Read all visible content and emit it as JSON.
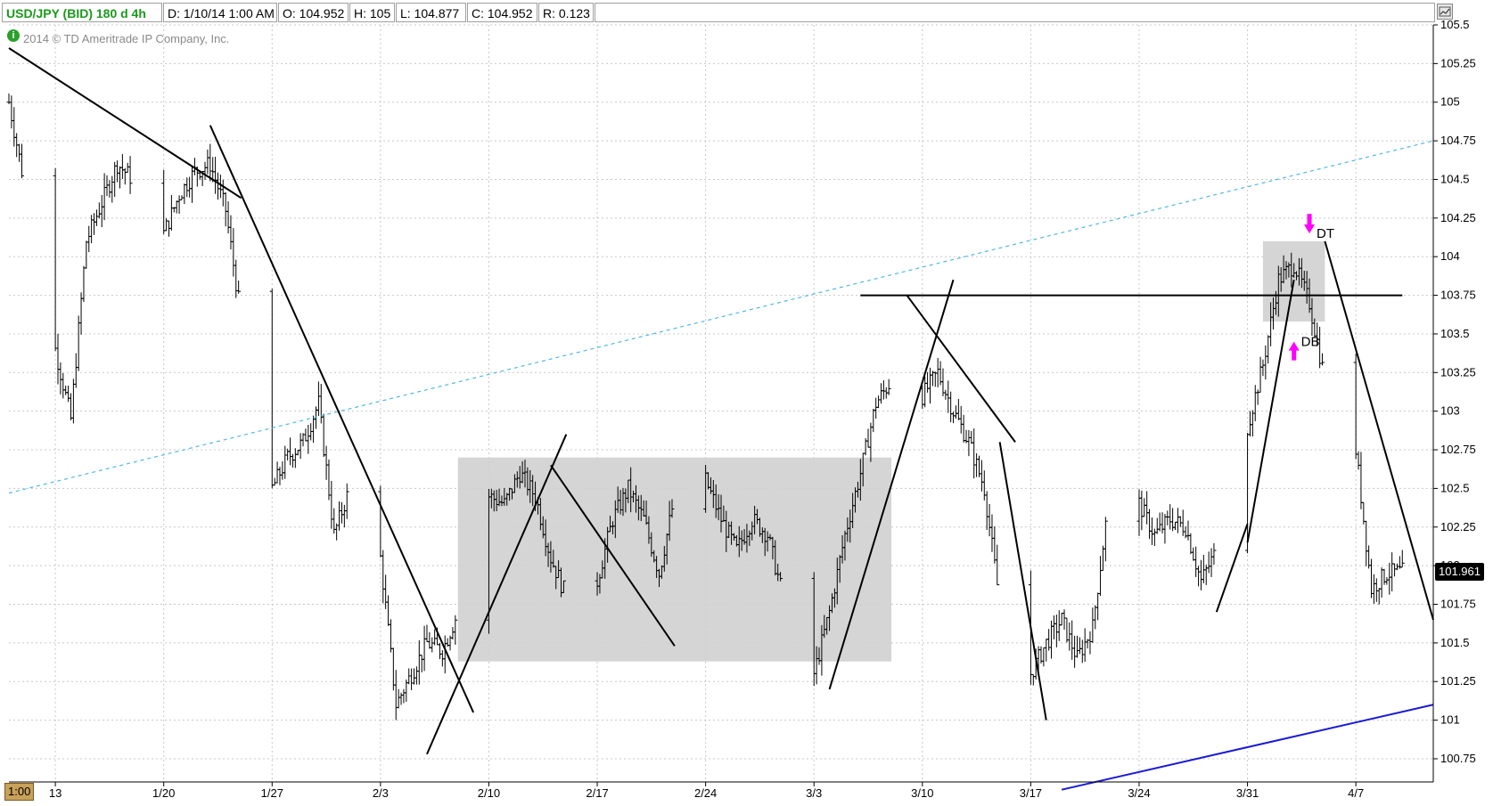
{
  "header": {
    "symbol": "USD/JPY (BID) 180 d 4h",
    "date": "D: 1/10/14 1:00 AM",
    "open": "O: 104.952",
    "high": "H: 105",
    "low": "L: 104.877",
    "close": "C: 104.952",
    "range": "R: 0.123"
  },
  "copyright": "2014 © TD Ameritrade IP Company, Inc.",
  "time_badge": "1:00",
  "last_price": "101.961",
  "colors": {
    "bars": "#000000",
    "zone": "#d0d0d0",
    "dotted_trend": "#4fb8e6",
    "support_trend": "#1a1ad6",
    "marker": "#ff00ff",
    "grid": "#c8c8c8",
    "header_symbol": "#1a9a1a"
  },
  "icons": [
    "info-icon",
    "settings-icon"
  ],
  "chart_data": {
    "type": "ohlc",
    "title": "USD/JPY (BID) 180 d 4h",
    "xlabel": "",
    "ylabel": "",
    "ylim": [
      100.6,
      105.5
    ],
    "xlim": [
      "2014-01-10",
      "2014-04-12"
    ],
    "grid": true,
    "yticks": [
      100.75,
      101,
      101.25,
      101.5,
      101.75,
      102,
      102.25,
      102.5,
      102.75,
      103,
      103.25,
      103.5,
      103.75,
      104,
      104.25,
      104.5,
      104.75,
      105,
      105.25,
      105.5
    ],
    "xticks": [
      {
        "date": "2014-01-13",
        "label": "13"
      },
      {
        "date": "2014-01-20",
        "label": "1/20"
      },
      {
        "date": "2014-01-27",
        "label": "1/27"
      },
      {
        "date": "2014-02-03",
        "label": "2/3"
      },
      {
        "date": "2014-02-10",
        "label": "2/10"
      },
      {
        "date": "2014-02-17",
        "label": "2/17"
      },
      {
        "date": "2014-02-24",
        "label": "2/24"
      },
      {
        "date": "2014-03-03",
        "label": "3/3"
      },
      {
        "date": "2014-03-10",
        "label": "3/10"
      },
      {
        "date": "2014-03-17",
        "label": "3/17"
      },
      {
        "date": "2014-03-24",
        "label": "3/24"
      },
      {
        "date": "2014-03-31",
        "label": "3/31"
      },
      {
        "date": "2014-04-07",
        "label": "4/7"
      }
    ],
    "price_path": [
      [
        "2014-01-10",
        105.0
      ],
      [
        "2014-01-13",
        103.4
      ],
      [
        "2014-01-14",
        102.95
      ],
      [
        "2014-01-15",
        104.1
      ],
      [
        "2014-01-16",
        104.35
      ],
      [
        "2014-01-17",
        104.6
      ],
      [
        "2014-01-18",
        104.5
      ],
      [
        "2014-01-19",
        104.2
      ],
      [
        "2014-01-20",
        104.15
      ],
      [
        "2014-01-21",
        104.4
      ],
      [
        "2014-01-22",
        104.55
      ],
      [
        "2014-01-23",
        104.6
      ],
      [
        "2014-01-24",
        104.3
      ],
      [
        "2014-01-25",
        103.6
      ],
      [
        "2014-01-26",
        103.0
      ],
      [
        "2014-01-27",
        102.5
      ],
      [
        "2014-01-28",
        102.7
      ],
      [
        "2014-01-29",
        102.8
      ],
      [
        "2014-01-30",
        103.05
      ],
      [
        "2014-01-31",
        102.2
      ],
      [
        "2014-02-01",
        102.5
      ],
      [
        "2014-02-02",
        102.75
      ],
      [
        "2014-02-03",
        102.05
      ],
      [
        "2014-02-04",
        101.1
      ],
      [
        "2014-02-05",
        101.3
      ],
      [
        "2014-02-06",
        101.5
      ],
      [
        "2014-02-07",
        101.45
      ],
      [
        "2014-02-08",
        101.7
      ],
      [
        "2014-02-09",
        102.2
      ],
      [
        "2014-02-10",
        102.45
      ],
      [
        "2014-02-11",
        102.4
      ],
      [
        "2014-02-12",
        102.6
      ],
      [
        "2014-02-13",
        102.45
      ],
      [
        "2014-02-14",
        102.05
      ],
      [
        "2014-02-15",
        101.8
      ],
      [
        "2014-02-16",
        101.55
      ],
      [
        "2014-02-17",
        101.9
      ],
      [
        "2014-02-18",
        102.3
      ],
      [
        "2014-02-19",
        102.5
      ],
      [
        "2014-02-20",
        102.3
      ],
      [
        "2014-02-21",
        101.95
      ],
      [
        "2014-02-22",
        102.45
      ],
      [
        "2014-02-23",
        102.6
      ],
      [
        "2014-02-24",
        102.55
      ],
      [
        "2014-02-25",
        102.3
      ],
      [
        "2014-02-26",
        102.1
      ],
      [
        "2014-02-27",
        102.3
      ],
      [
        "2014-02-28",
        102.2
      ],
      [
        "2014-03-01",
        101.8
      ],
      [
        "2014-03-02",
        101.55
      ],
      [
        "2014-03-03",
        101.3
      ],
      [
        "2014-03-04",
        101.7
      ],
      [
        "2014-03-05",
        102.2
      ],
      [
        "2014-03-06",
        102.6
      ],
      [
        "2014-03-07",
        103.05
      ],
      [
        "2014-03-08",
        103.2
      ],
      [
        "2014-03-09",
        103.45
      ],
      [
        "2014-03-10",
        103.1
      ],
      [
        "2014-03-11",
        103.25
      ],
      [
        "2014-03-12",
        103.0
      ],
      [
        "2014-03-13",
        102.8
      ],
      [
        "2014-03-14",
        102.5
      ],
      [
        "2014-03-15",
        101.75
      ],
      [
        "2014-03-16",
        101.5
      ],
      [
        "2014-03-17",
        101.3
      ],
      [
        "2014-03-18",
        101.5
      ],
      [
        "2014-03-19",
        101.65
      ],
      [
        "2014-03-20",
        101.4
      ],
      [
        "2014-03-21",
        101.6
      ],
      [
        "2014-03-22",
        102.4
      ],
      [
        "2014-03-23",
        102.35
      ],
      [
        "2014-03-24",
        102.4
      ],
      [
        "2014-03-25",
        102.2
      ],
      [
        "2014-03-26",
        102.3
      ],
      [
        "2014-03-27",
        102.25
      ],
      [
        "2014-03-28",
        101.9
      ],
      [
        "2014-03-29",
        102.1
      ],
      [
        "2014-03-30",
        102.6
      ],
      [
        "2014-03-31",
        102.9
      ],
      [
        "2014-04-01",
        103.3
      ],
      [
        "2014-04-02",
        103.85
      ],
      [
        "2014-04-03",
        103.95
      ],
      [
        "2014-04-04",
        103.7
      ],
      [
        "2014-04-05",
        103.2
      ],
      [
        "2014-04-06",
        103.1
      ],
      [
        "2014-04-07",
        102.75
      ],
      [
        "2014-04-08",
        101.85
      ],
      [
        "2014-04-09",
        101.95
      ],
      [
        "2014-04-10",
        101.96
      ]
    ],
    "shaded_zones": [
      {
        "x0": "2014-02-08",
        "x1": "2014-03-08",
        "y0": 101.38,
        "y1": 102.7
      },
      {
        "x0": "2014-04-01",
        "x1": "2014-04-05",
        "y0": 103.58,
        "y1": 104.1
      }
    ],
    "trendlines": [
      {
        "style": "solid",
        "color": "#000000",
        "points": [
          [
            "2014-01-10",
            105.35
          ],
          [
            "2014-01-25",
            104.38
          ]
        ]
      },
      {
        "style": "solid",
        "color": "#000000",
        "points": [
          [
            "2014-01-23",
            104.85
          ],
          [
            "2014-02-09",
            101.05
          ]
        ]
      },
      {
        "style": "solid",
        "color": "#000000",
        "points": [
          [
            "2014-02-06",
            100.78
          ],
          [
            "2014-02-15",
            102.85
          ]
        ]
      },
      {
        "style": "solid",
        "color": "#000000",
        "points": [
          [
            "2014-02-14",
            102.65
          ],
          [
            "2014-02-22",
            101.48
          ]
        ]
      },
      {
        "style": "solid",
        "color": "#000000",
        "points": [
          [
            "2014-03-04",
            101.2
          ],
          [
            "2014-03-12",
            103.85
          ]
        ]
      },
      {
        "style": "solid",
        "color": "#000000",
        "points": [
          [
            "2014-03-09",
            103.75
          ],
          [
            "2014-03-16",
            102.8
          ]
        ]
      },
      {
        "style": "solid",
        "color": "#000000",
        "points": [
          [
            "2014-03-15",
            102.8
          ],
          [
            "2014-03-18",
            101.0
          ]
        ]
      },
      {
        "style": "solid",
        "color": "#000000",
        "points": [
          [
            "2014-03-29",
            101.7
          ],
          [
            "2014-03-31",
            102.27
          ]
        ]
      },
      {
        "style": "solid",
        "color": "#000000",
        "points": [
          [
            "2014-03-31",
            102.15
          ],
          [
            "2014-04-03",
            103.85
          ]
        ]
      },
      {
        "style": "solid",
        "color": "#000000",
        "points": [
          [
            "2014-04-05",
            104.1
          ],
          [
            "2014-04-12",
            101.65
          ]
        ]
      },
      {
        "style": "solid",
        "color": "#000000",
        "points": [
          [
            "2014-03-06",
            103.75
          ],
          [
            "2014-04-10",
            103.75
          ]
        ]
      },
      {
        "style": "dotted",
        "color": "#4fb8e6",
        "points": [
          [
            "2014-01-10",
            102.47
          ],
          [
            "2014-04-12",
            104.75
          ]
        ]
      },
      {
        "style": "solid",
        "color": "#1a1ad6",
        "points": [
          [
            "2014-03-19",
            100.55
          ],
          [
            "2014-04-12",
            101.1
          ]
        ]
      }
    ],
    "annotations": [
      {
        "label": "DT",
        "date": "2014-04-04",
        "price": 104.15,
        "arrow": "down"
      },
      {
        "label": "DB",
        "date": "2014-04-03",
        "price": 103.45,
        "arrow": "up"
      }
    ],
    "last_price": 101.961
  }
}
